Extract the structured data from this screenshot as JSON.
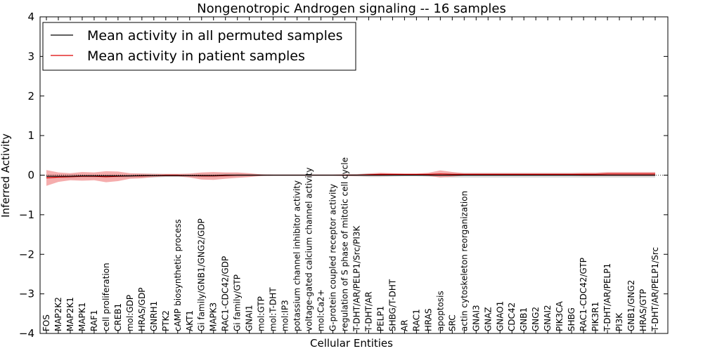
{
  "chart_data": {
    "type": "line",
    "title": "Nongenotropic Androgen signaling -- 16 samples",
    "xlabel": "Cellular Entities",
    "ylabel": "Inferred Activity",
    "ylim": [
      -4,
      4
    ],
    "yticks": [
      {
        "value": 4,
        "label": "4"
      },
      {
        "value": 3,
        "label": "3"
      },
      {
        "value": 2,
        "label": "2"
      },
      {
        "value": 1,
        "label": "1"
      },
      {
        "value": 0,
        "label": "0"
      },
      {
        "value": -1,
        "label": "−1"
      },
      {
        "value": -2,
        "label": "−2"
      },
      {
        "value": -3,
        "label": "−3"
      },
      {
        "value": -4,
        "label": "−4"
      }
    ],
    "legend_position": "top-left",
    "categories": [
      "FOS",
      "MAP2K2",
      "MAP2K1",
      "MAPK1",
      "RAF1",
      "cell proliferation",
      "CREB1",
      "mol:GDP",
      "HRAS/GDP",
      "GNRH1",
      "PTK2",
      "cAMP biosynthetic process",
      "AKT1",
      "Gi family/GNB1/GNG2/GDP",
      "MAPK3",
      "RAC1-CDC42/GDP",
      "Gi family/GTP",
      "GNAI1",
      "mol:GTP",
      "mol:T-DHT",
      "mol:IP3",
      "potassium channel inhibitor activity",
      "voltage-gated calcium channel activity",
      "mol:Ca2+",
      "G-protein coupled receptor activity",
      "regulation of S phase of mitotic cell cycle",
      "T-DHT/AR/PELP1/Src/PI3K",
      "T-DHT/AR",
      "PELP1",
      "SHBG/T-DHT",
      "AR",
      "RAC1",
      "HRAS",
      "apoptosis",
      "SRC",
      "actin cytoskeleton reorganization",
      "GNAI3",
      "GNAZ",
      "GNAO1",
      "CDC42",
      "GNB1",
      "GNG2",
      "GNAI2",
      "PIK3CA",
      "SHBG",
      "RAC1-CDC42/GTP",
      "PIK3R1",
      "T-DHT/AR/PELP1",
      "PI3K",
      "GNB1/GNG2",
      "HRAS/GTP",
      "T-DHT/AR/PELP1/Src"
    ],
    "series": [
      {
        "name": "Mean activity in all permuted samples",
        "color": "#000000",
        "band_color": "#bbbbbb",
        "values": [
          -0.03,
          -0.03,
          -0.03,
          -0.02,
          -0.02,
          -0.02,
          -0.02,
          -0.02,
          -0.01,
          -0.01,
          -0.01,
          -0.01,
          -0.01,
          -0.01,
          -0.01,
          0.0,
          0.0,
          0.0,
          0.0,
          0.0,
          0.0,
          0.0,
          0.0,
          0.0,
          0.0,
          0.0,
          0.0,
          0.0,
          0.0,
          0.0,
          0.0,
          0.0,
          0.0,
          0.0,
          0.0,
          0.0,
          0.0,
          0.0,
          0.0,
          0.0,
          0.0,
          0.0,
          0.0,
          0.0,
          0.0,
          0.0,
          0.0,
          0.0,
          0.0,
          0.0,
          0.0,
          0.0
        ],
        "band": [
          0.05,
          0.05,
          0.05,
          0.05,
          0.05,
          0.05,
          0.05,
          0.05,
          0.05,
          0.05,
          0.04,
          0.04,
          0.04,
          0.05,
          0.05,
          0.05,
          0.04,
          0.03,
          0.02,
          0.01,
          0.01,
          0.01,
          0.01,
          0.01,
          0.01,
          0.02,
          0.03,
          0.05,
          0.05,
          0.04,
          0.03,
          0.03,
          0.04,
          0.05,
          0.06,
          0.06,
          0.06,
          0.06,
          0.06,
          0.06,
          0.06,
          0.06,
          0.06,
          0.06,
          0.06,
          0.06,
          0.06,
          0.06,
          0.06,
          0.06,
          0.06,
          0.06
        ]
      },
      {
        "name": "Mean activity in patient samples",
        "color": "#dd0000",
        "band_color": "#ee7777",
        "values": [
          -0.07,
          -0.05,
          -0.04,
          -0.03,
          -0.03,
          -0.04,
          -0.03,
          -0.02,
          -0.02,
          -0.01,
          0.0,
          0.0,
          -0.01,
          -0.02,
          -0.02,
          -0.01,
          0.0,
          0.0,
          0.0,
          0.0,
          0.0,
          0.0,
          0.0,
          0.0,
          0.0,
          0.0,
          0.0,
          0.01,
          0.02,
          0.02,
          0.02,
          0.02,
          0.02,
          0.03,
          0.02,
          0.02,
          0.02,
          0.02,
          0.02,
          0.02,
          0.02,
          0.02,
          0.02,
          0.02,
          0.02,
          0.02,
          0.02,
          0.03,
          0.03,
          0.03,
          0.03,
          0.03
        ],
        "band": [
          0.2,
          0.12,
          0.09,
          0.11,
          0.1,
          0.14,
          0.12,
          0.07,
          0.06,
          0.04,
          0.03,
          0.03,
          0.05,
          0.09,
          0.1,
          0.08,
          0.07,
          0.05,
          0.02,
          0.01,
          0.01,
          0.01,
          0.01,
          0.01,
          0.01,
          0.02,
          0.02,
          0.03,
          0.04,
          0.03,
          0.02,
          0.02,
          0.04,
          0.09,
          0.06,
          0.03,
          0.03,
          0.03,
          0.03,
          0.03,
          0.03,
          0.03,
          0.03,
          0.03,
          0.03,
          0.04,
          0.04,
          0.05,
          0.05,
          0.05,
          0.05,
          0.05
        ]
      }
    ]
  }
}
